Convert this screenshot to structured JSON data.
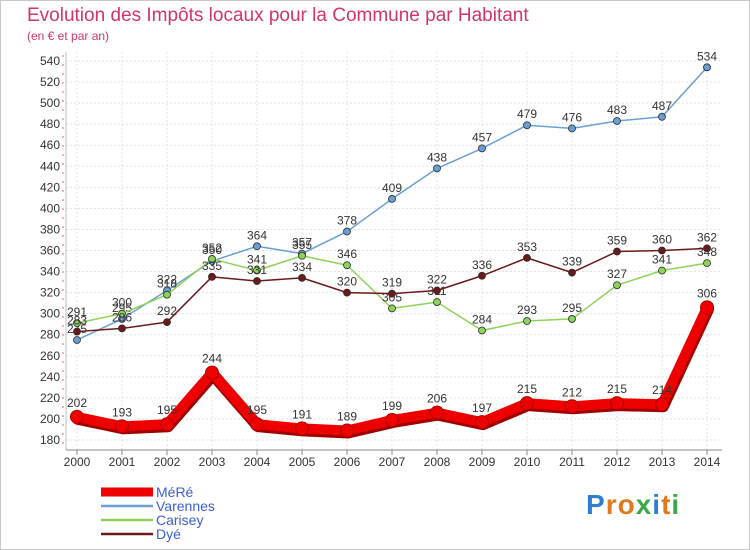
{
  "title": "Evolution des Impôts locaux pour la Commune par Habitant",
  "subtitle": "(en € et par an)",
  "logo": [
    "P",
    "r",
    "o",
    "x",
    "i",
    "t",
    "i"
  ],
  "colors": {
    "title": "#d2356b",
    "logo": [
      "#2f7fd0",
      "#e07a1c",
      "#e07a1c",
      "#3ba84a",
      "#2f7fd0",
      "#e07a1c",
      "#3ba84a"
    ]
  },
  "chart_data": {
    "type": "line",
    "title": "Evolution des Impôts locaux pour la Commune par Habitant",
    "subtitle": "(en € et par an)",
    "xlabel": "",
    "ylabel": "",
    "x": [
      "2000",
      "2001",
      "2002",
      "2003",
      "2004",
      "2005",
      "2006",
      "2007",
      "2008",
      "2009",
      "2010",
      "2011",
      "2012",
      "2013",
      "2014"
    ],
    "ylim": [
      180,
      540
    ],
    "yticks": [
      180,
      200,
      220,
      240,
      260,
      280,
      300,
      320,
      340,
      360,
      380,
      400,
      420,
      440,
      460,
      480,
      500,
      520,
      540
    ],
    "grid": true,
    "legend_position": "bottom-left",
    "series": [
      {
        "name": "MéRé",
        "color": "#ee0000",
        "values": [
          202,
          193,
          195,
          244,
          195,
          191,
          189,
          199,
          206,
          197,
          215,
          212,
          215,
          214,
          306
        ],
        "labels": [
          "202",
          "193",
          "195",
          "244",
          "195",
          "191",
          "189",
          "199",
          "206",
          "197",
          "215",
          "212",
          "215",
          "214",
          "306"
        ]
      },
      {
        "name": "Varennes",
        "color": "#6a9fd6",
        "values": [
          275,
          295,
          322,
          350,
          364,
          357,
          378,
          409,
          438,
          457,
          479,
          476,
          483,
          487,
          534
        ],
        "labels": [
          "275",
          "295",
          "322",
          "350",
          "364",
          "357",
          "378",
          "409",
          "438",
          "457",
          "479",
          "476",
          "483",
          "487",
          "534"
        ]
      },
      {
        "name": "Carisey",
        "color": "#8fd25a",
        "values": [
          291,
          300,
          318,
          352,
          341,
          355,
          346,
          305,
          311,
          284,
          293,
          295,
          327,
          341,
          348
        ],
        "labels": [
          "291",
          "300",
          "318",
          "352",
          "341",
          "355",
          "346",
          "305",
          "311",
          "284",
          "293",
          "295",
          "327",
          "341",
          "348"
        ]
      },
      {
        "name": "Dyé",
        "color": "#6b1a1a",
        "values": [
          283,
          286,
          292,
          335,
          331,
          334,
          320,
          319,
          322,
          336,
          353,
          339,
          359,
          360,
          362
        ],
        "labels": [
          "283",
          "286",
          "292",
          "335",
          "331",
          "334",
          "320",
          "319",
          "322",
          "336",
          "353",
          "339",
          "359",
          "360",
          "362"
        ]
      }
    ]
  }
}
